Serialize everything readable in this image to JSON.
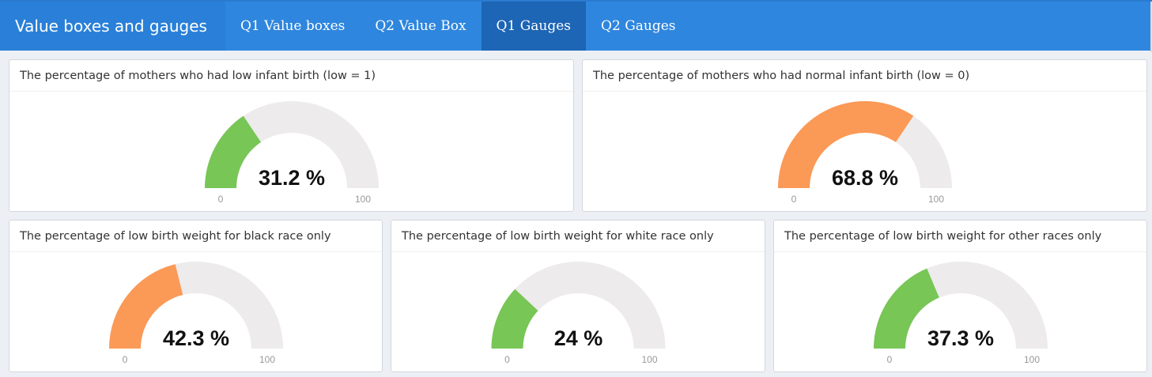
{
  "header": {
    "title": "Value boxes and gauges",
    "tabs": [
      {
        "label": "Q1 Value boxes",
        "active": false
      },
      {
        "label": "Q2 Value Box",
        "active": false
      },
      {
        "label": "Q1 Gauges",
        "active": true
      },
      {
        "label": "Q2 Gauges",
        "active": false
      }
    ]
  },
  "colors": {
    "green": "#77c656",
    "orange": "#fb9956",
    "track": "#edebeb"
  },
  "gauges": [
    {
      "title": "The percentage of mothers who had low infant birth (low = 1)",
      "value": 31.2,
      "display": "31.2 %",
      "min": "0",
      "max": "100",
      "color": "green"
    },
    {
      "title": "The percentage of mothers who had normal infant birth (low = 0)",
      "value": 68.8,
      "display": "68.8 %",
      "min": "0",
      "max": "100",
      "color": "orange"
    },
    {
      "title": "The percentage of low birth weight for black race only",
      "value": 42.3,
      "display": "42.3 %",
      "min": "0",
      "max": "100",
      "color": "orange"
    },
    {
      "title": "The percentage of low birth weight for white race only",
      "value": 24,
      "display": "24 %",
      "min": "0",
      "max": "100",
      "color": "green"
    },
    {
      "title": "The percentage of low birth weight for other races only",
      "value": 37.3,
      "display": "37.3 %",
      "min": "0",
      "max": "100",
      "color": "green"
    }
  ]
}
